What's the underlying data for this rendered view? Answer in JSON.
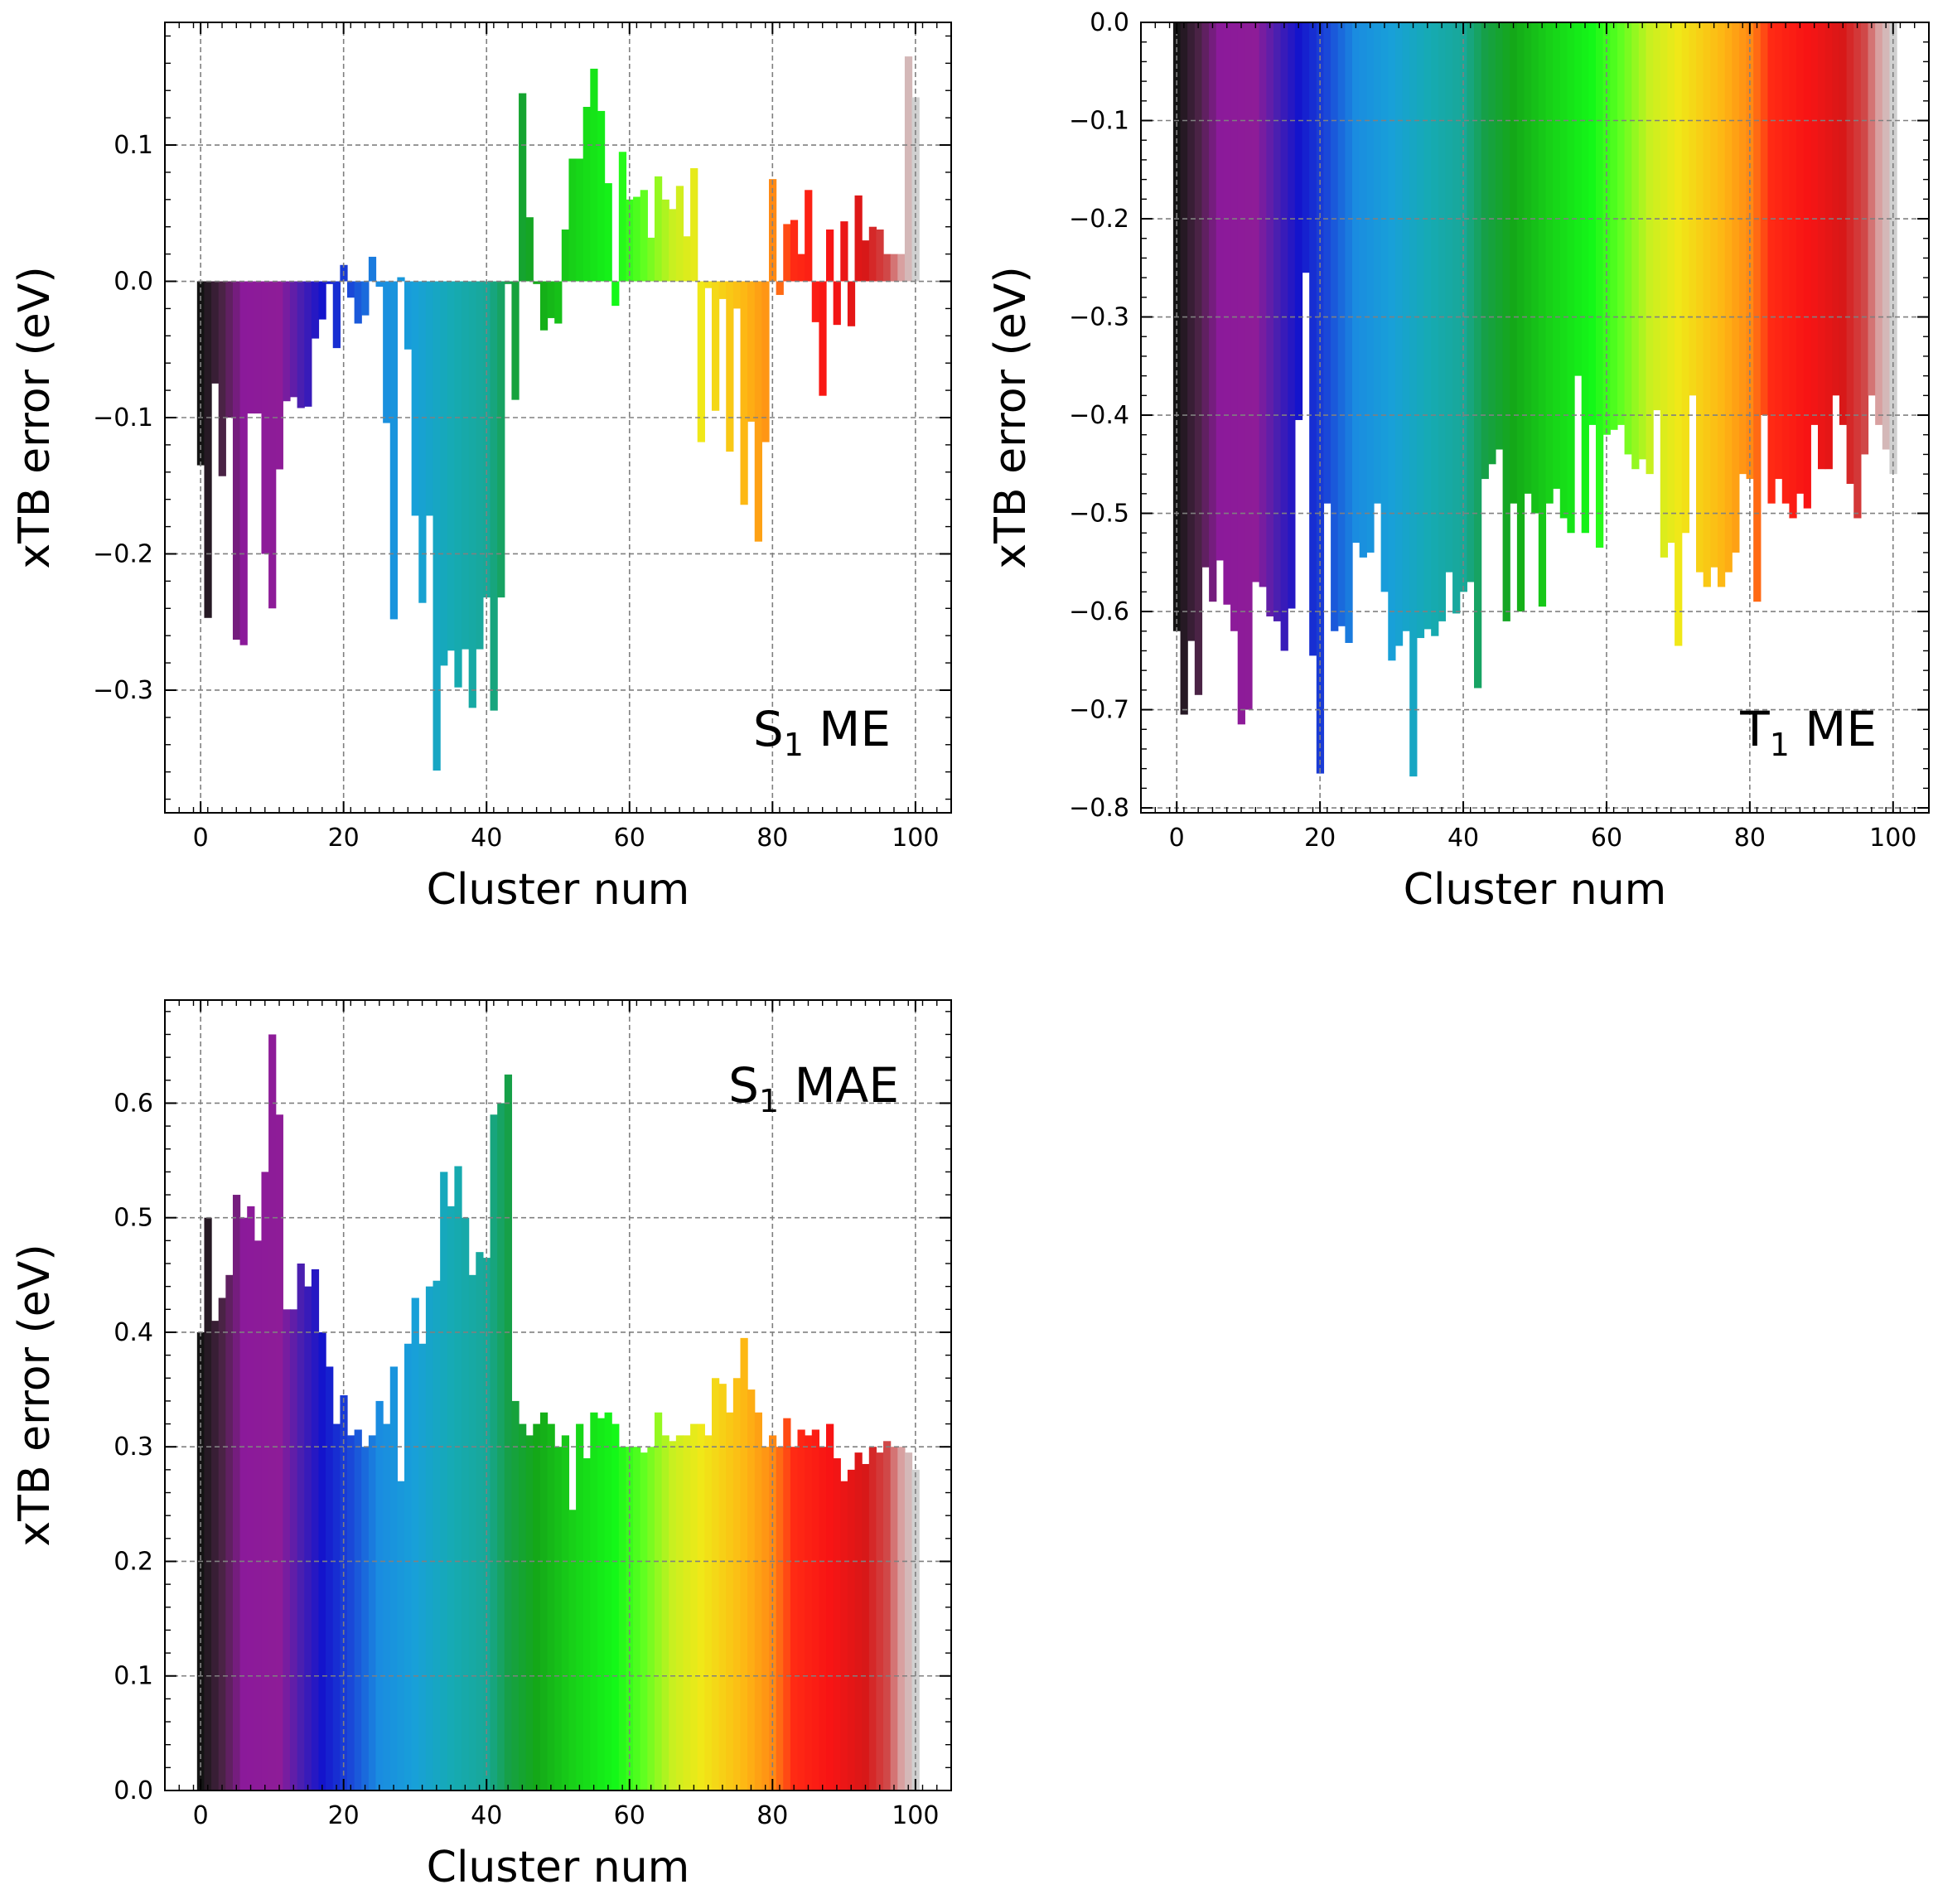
{
  "chart_data": [
    {
      "type": "bar",
      "panel_label": "S1 ME",
      "panel_label_main": "S",
      "panel_label_sub": "1",
      "panel_label_rest": " ME",
      "label_position": "bottom-right",
      "xlabel": "Cluster num",
      "ylabel": "xTB error (eV)",
      "xlim": [
        -5,
        105
      ],
      "ylim": [
        -0.39,
        0.19
      ],
      "xticks": [
        0,
        20,
        40,
        60,
        80,
        100
      ],
      "yticks": [
        -0.3,
        -0.2,
        -0.1,
        0.0,
        0.1
      ],
      "ytick_labels": [
        "−0.3",
        "−0.2",
        "−0.1",
        "0.0",
        "0.1"
      ],
      "grid": true,
      "x": [
        0,
        1,
        2,
        3,
        4,
        5,
        6,
        7,
        8,
        9,
        10,
        11,
        12,
        13,
        14,
        15,
        16,
        17,
        18,
        19,
        20,
        21,
        22,
        23,
        24,
        25,
        26,
        27,
        28,
        29,
        30,
        31,
        32,
        33,
        34,
        35,
        36,
        37,
        38,
        39,
        40,
        41,
        42,
        43,
        44,
        45,
        46,
        47,
        48,
        49,
        50,
        51,
        52,
        53,
        54,
        55,
        56,
        57,
        58,
        59,
        60,
        61,
        62,
        63,
        64,
        65,
        66,
        67,
        68,
        69,
        70,
        71,
        72,
        73,
        74,
        75,
        76,
        77,
        78,
        79,
        80,
        81,
        82,
        83,
        84,
        85,
        86,
        87,
        88,
        89,
        90,
        91,
        92,
        93,
        94,
        95,
        96,
        97,
        98,
        99,
        100
      ],
      "values": [
        -0.135,
        -0.247,
        -0.075,
        -0.143,
        -0.1,
        -0.263,
        -0.267,
        -0.097,
        -0.097,
        -0.2,
        -0.24,
        -0.138,
        -0.088,
        -0.085,
        -0.093,
        -0.092,
        -0.042,
        -0.028,
        -0.002,
        -0.049,
        0.012,
        -0.012,
        -0.031,
        -0.025,
        0.018,
        -0.004,
        -0.104,
        -0.248,
        0.003,
        -0.05,
        -0.172,
        -0.236,
        -0.172,
        -0.359,
        -0.282,
        -0.271,
        -0.298,
        -0.27,
        -0.313,
        -0.27,
        -0.232,
        -0.315,
        -0.232,
        -0.002,
        -0.087,
        0.138,
        0.047,
        -0.002,
        -0.036,
        -0.027,
        -0.031,
        0.038,
        0.09,
        0.09,
        0.128,
        0.156,
        0.125,
        0.072,
        -0.018,
        0.095,
        0.06,
        0.062,
        0.067,
        0.032,
        0.077,
        0.06,
        0.053,
        0.07,
        0.033,
        0.083,
        -0.118,
        -0.005,
        -0.095,
        -0.013,
        -0.125,
        -0.02,
        -0.164,
        -0.103,
        -0.191,
        -0.118,
        0.075,
        -0.01,
        0.042,
        0.045,
        0.02,
        0.067,
        -0.03,
        -0.084,
        0.038,
        -0.032,
        0.044,
        -0.033,
        0.063,
        0.03,
        0.04,
        0.038,
        0.02,
        0.02,
        0.02,
        0.165,
        0.135
      ]
    },
    {
      "type": "bar",
      "panel_label": "T1 ME",
      "panel_label_main": "T",
      "panel_label_sub": "1",
      "panel_label_rest": " ME",
      "label_position": "bottom-right",
      "xlabel": "Cluster num",
      "ylabel": "xTB error (eV)",
      "xlim": [
        -5,
        105
      ],
      "ylim": [
        -0.805,
        0.0
      ],
      "xticks": [
        0,
        20,
        40,
        60,
        80,
        100
      ],
      "yticks": [
        -0.8,
        -0.7,
        -0.6,
        -0.5,
        -0.4,
        -0.3,
        -0.2,
        -0.1,
        0.0
      ],
      "ytick_labels": [
        "−0.8",
        "−0.7",
        "−0.6",
        "−0.5",
        "−0.4",
        "−0.3",
        "−0.2",
        "−0.1",
        "0.0"
      ],
      "grid": true,
      "x": [
        0,
        1,
        2,
        3,
        4,
        5,
        6,
        7,
        8,
        9,
        10,
        11,
        12,
        13,
        14,
        15,
        16,
        17,
        18,
        19,
        20,
        21,
        22,
        23,
        24,
        25,
        26,
        27,
        28,
        29,
        30,
        31,
        32,
        33,
        34,
        35,
        36,
        37,
        38,
        39,
        40,
        41,
        42,
        43,
        44,
        45,
        46,
        47,
        48,
        49,
        50,
        51,
        52,
        53,
        54,
        55,
        56,
        57,
        58,
        59,
        60,
        61,
        62,
        63,
        64,
        65,
        66,
        67,
        68,
        69,
        70,
        71,
        72,
        73,
        74,
        75,
        76,
        77,
        78,
        79,
        80,
        81,
        82,
        83,
        84,
        85,
        86,
        87,
        88,
        89,
        90,
        91,
        92,
        93,
        94,
        95,
        96,
        97,
        98,
        99,
        100
      ],
      "values": [
        -0.62,
        -0.705,
        -0.63,
        -0.685,
        -0.555,
        -0.59,
        -0.548,
        -0.593,
        -0.62,
        -0.715,
        -0.7,
        -0.57,
        -0.575,
        -0.605,
        -0.61,
        -0.64,
        -0.597,
        -0.405,
        -0.255,
        -0.645,
        -0.765,
        -0.49,
        -0.62,
        -0.615,
        -0.632,
        -0.53,
        -0.545,
        -0.54,
        -0.49,
        -0.58,
        -0.65,
        -0.635,
        -0.62,
        -0.768,
        -0.627,
        -0.618,
        -0.625,
        -0.61,
        -0.56,
        -0.602,
        -0.58,
        -0.57,
        -0.678,
        -0.465,
        -0.45,
        -0.435,
        -0.61,
        -0.49,
        -0.6,
        -0.48,
        -0.5,
        -0.595,
        -0.49,
        -0.475,
        -0.505,
        -0.52,
        -0.36,
        -0.52,
        -0.41,
        -0.535,
        -0.42,
        -0.415,
        -0.41,
        -0.44,
        -0.455,
        -0.445,
        -0.46,
        -0.395,
        -0.545,
        -0.53,
        -0.635,
        -0.52,
        -0.38,
        -0.56,
        -0.575,
        -0.555,
        -0.575,
        -0.56,
        -0.54,
        -0.46,
        -0.465,
        -0.59,
        -0.4,
        -0.49,
        -0.465,
        -0.49,
        -0.505,
        -0.48,
        -0.495,
        -0.41,
        -0.455,
        -0.455,
        -0.38,
        -0.41,
        -0.47,
        -0.505,
        -0.44,
        -0.38,
        -0.41,
        -0.435,
        -0.46
      ]
    },
    {
      "type": "bar",
      "panel_label": "S1 MAE",
      "panel_label_main": "S",
      "panel_label_sub": "1",
      "panel_label_rest": " MAE",
      "label_position": "top-right",
      "xlabel": "Cluster num",
      "ylabel": "xTB error (eV)",
      "xlim": [
        -5,
        105
      ],
      "ylim": [
        0.0,
        0.69
      ],
      "xticks": [
        0,
        20,
        40,
        60,
        80,
        100
      ],
      "yticks": [
        0.0,
        0.1,
        0.2,
        0.3,
        0.4,
        0.5,
        0.6
      ],
      "ytick_labels": [
        "0.0",
        "0.1",
        "0.2",
        "0.3",
        "0.4",
        "0.5",
        "0.6"
      ],
      "grid": true,
      "x": [
        0,
        1,
        2,
        3,
        4,
        5,
        6,
        7,
        8,
        9,
        10,
        11,
        12,
        13,
        14,
        15,
        16,
        17,
        18,
        19,
        20,
        21,
        22,
        23,
        24,
        25,
        26,
        27,
        28,
        29,
        30,
        31,
        32,
        33,
        34,
        35,
        36,
        37,
        38,
        39,
        40,
        41,
        42,
        43,
        44,
        45,
        46,
        47,
        48,
        49,
        50,
        51,
        52,
        53,
        54,
        55,
        56,
        57,
        58,
        59,
        60,
        61,
        62,
        63,
        64,
        65,
        66,
        67,
        68,
        69,
        70,
        71,
        72,
        73,
        74,
        75,
        76,
        77,
        78,
        79,
        80,
        81,
        82,
        83,
        84,
        85,
        86,
        87,
        88,
        89,
        90,
        91,
        92,
        93,
        94,
        95,
        96,
        97,
        98,
        99,
        100
      ],
      "values": [
        0.4,
        0.5,
        0.41,
        0.43,
        0.45,
        0.52,
        0.5,
        0.51,
        0.48,
        0.54,
        0.66,
        0.59,
        0.42,
        0.42,
        0.46,
        0.44,
        0.455,
        0.4,
        0.37,
        0.32,
        0.345,
        0.31,
        0.315,
        0.3,
        0.31,
        0.34,
        0.32,
        0.37,
        0.27,
        0.39,
        0.43,
        0.39,
        0.44,
        0.445,
        0.54,
        0.51,
        0.545,
        0.5,
        0.45,
        0.47,
        0.465,
        0.59,
        0.6,
        0.625,
        0.34,
        0.32,
        0.31,
        0.32,
        0.33,
        0.32,
        0.3,
        0.31,
        0.245,
        0.32,
        0.29,
        0.33,
        0.325,
        0.33,
        0.32,
        0.3,
        0.3,
        0.3,
        0.295,
        0.3,
        0.33,
        0.31,
        0.305,
        0.31,
        0.31,
        0.32,
        0.32,
        0.31,
        0.36,
        0.355,
        0.33,
        0.36,
        0.395,
        0.35,
        0.33,
        0.3,
        0.31,
        0.3,
        0.325,
        0.3,
        0.315,
        0.31,
        0.315,
        0.3,
        0.32,
        0.29,
        0.27,
        0.28,
        0.295,
        0.285,
        0.3,
        0.295,
        0.305,
        0.3,
        0.3,
        0.295,
        0.28
      ]
    }
  ],
  "colormap_stops": [
    {
      "at": 0,
      "color": "#141414"
    },
    {
      "at": 3,
      "color": "#4a2345"
    },
    {
      "at": 6,
      "color": "#8b1a9a"
    },
    {
      "at": 11,
      "color": "#8e1c98"
    },
    {
      "at": 14,
      "color": "#4a1fb0"
    },
    {
      "at": 17,
      "color": "#1414cc"
    },
    {
      "at": 21,
      "color": "#1a48d8"
    },
    {
      "at": 25,
      "color": "#1a8ce0"
    },
    {
      "at": 30,
      "color": "#18a0d8"
    },
    {
      "at": 35,
      "color": "#16aab5"
    },
    {
      "at": 40,
      "color": "#18a898"
    },
    {
      "at": 43,
      "color": "#16a048"
    },
    {
      "at": 47,
      "color": "#14a818"
    },
    {
      "at": 52,
      "color": "#18d018"
    },
    {
      "at": 58,
      "color": "#14f818"
    },
    {
      "at": 62,
      "color": "#60ff20"
    },
    {
      "at": 66,
      "color": "#c8f020"
    },
    {
      "at": 70,
      "color": "#f0e818"
    },
    {
      "at": 76,
      "color": "#fdb814"
    },
    {
      "at": 80,
      "color": "#ff8a14"
    },
    {
      "at": 83,
      "color": "#ff2a14"
    },
    {
      "at": 88,
      "color": "#f81414"
    },
    {
      "at": 93,
      "color": "#d81818"
    },
    {
      "at": 96,
      "color": "#d04848"
    },
    {
      "at": 98,
      "color": "#d8a0a0"
    },
    {
      "at": 100,
      "color": "#d0d0d0"
    }
  ]
}
